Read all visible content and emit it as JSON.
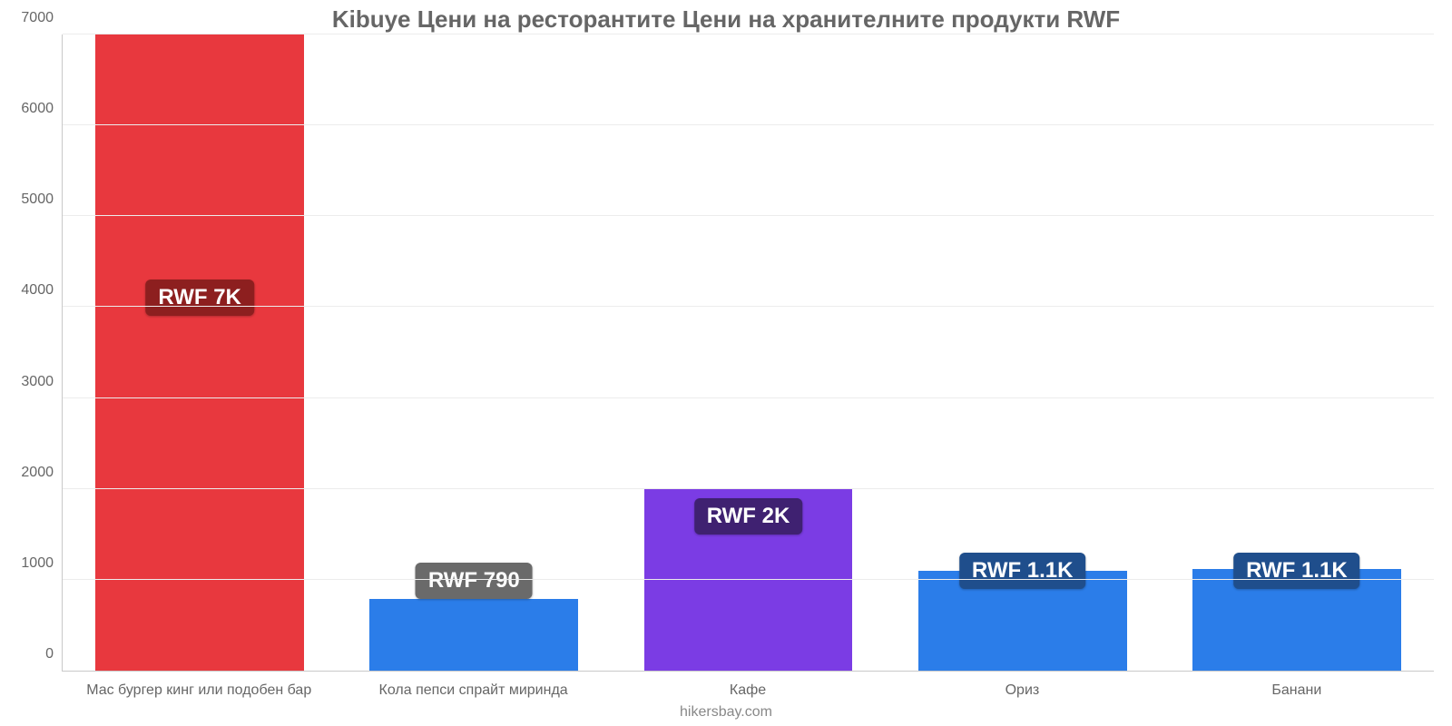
{
  "chart": {
    "type": "bar",
    "title": "Kibuye Цени на ресторантите Цени на хранителните продукти RWF",
    "title_fontsize": 26,
    "title_color": "#666666",
    "background_color": "#ffffff",
    "grid_color": "#ececec",
    "axis_color": "#c9c9c9",
    "ylim": [
      0,
      7000
    ],
    "ytick_step": 1000,
    "yticks": [
      0,
      1000,
      2000,
      3000,
      4000,
      5000,
      6000,
      7000
    ],
    "tick_label_color": "#666666",
    "tick_fontsize": 16,
    "xlabel_fontsize": 16,
    "bar_width_pct": 76,
    "watermark": "hikersbay.com",
    "watermark_color": "#888888",
    "watermark_fontsize": 16,
    "badge_fontsize": 24,
    "badge_radius": 6,
    "items": [
      {
        "category": "Мас бургер кинг или подобен бар",
        "value": 7000,
        "bar_color": "#e8383e",
        "badge_text": "RWF 7K",
        "badge_bg": "#8d1f1f",
        "badge_at_value": 3900
      },
      {
        "category": "Кола пепси спрайт миринда",
        "value": 790,
        "bar_color": "#2b7de9",
        "badge_text": "RWF 790",
        "badge_bg": "#6a6a6a",
        "badge_at_value": 790
      },
      {
        "category": "Кафе",
        "value": 2000,
        "bar_color": "#7b3ce4",
        "badge_text": "RWF 2K",
        "badge_bg": "#3f2171",
        "badge_at_value": 1500
      },
      {
        "category": "Ориз",
        "value": 1100,
        "bar_color": "#2b7de9",
        "badge_text": "RWF 1.1K",
        "badge_bg": "#1f4e8c",
        "badge_at_value": 900
      },
      {
        "category": "Банани",
        "value": 1120,
        "bar_color": "#2b7de9",
        "badge_text": "RWF 1.1K",
        "badge_bg": "#1f4e8c",
        "badge_at_value": 900
      }
    ]
  }
}
